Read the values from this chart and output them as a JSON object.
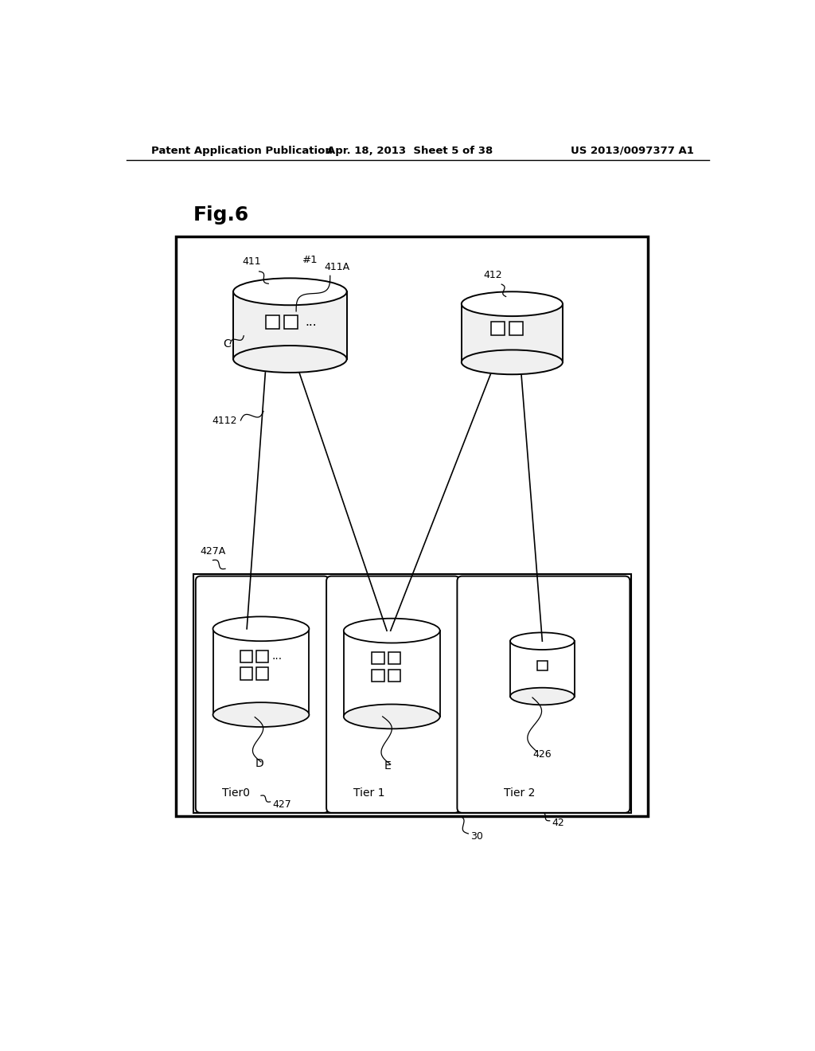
{
  "bg_color": "#ffffff",
  "header_left": "Patent Application Publication",
  "header_center": "Apr. 18, 2013  Sheet 5 of 38",
  "header_right": "US 2013/0097377 A1",
  "fig_label": "Fig.6"
}
